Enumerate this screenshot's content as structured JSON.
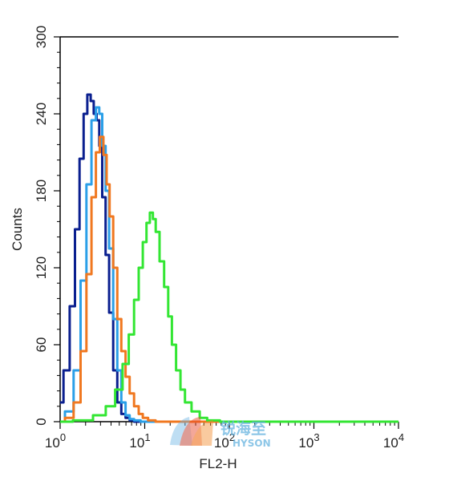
{
  "chart_data": {
    "type": "line",
    "title": "",
    "xlabel": "FL2-H",
    "ylabel": "Counts",
    "xscale": "log",
    "xlim": [
      1,
      10000
    ],
    "ylim": [
      0,
      300
    ],
    "grid": false,
    "legend": "none",
    "x_ticks": [
      {
        "base": "10",
        "exp": "0"
      },
      {
        "base": "10",
        "exp": "1"
      },
      {
        "base": "10",
        "exp": "2"
      },
      {
        "base": "10",
        "exp": "3"
      },
      {
        "base": "10",
        "exp": "4"
      }
    ],
    "x_tick_values": [
      1,
      10,
      100,
      1000,
      10000
    ],
    "y_ticks": [
      "0",
      "60",
      "120",
      "180",
      "240",
      "300"
    ],
    "y_tick_values": [
      0,
      60,
      120,
      180,
      240,
      300
    ],
    "series": [
      {
        "color": "#0a1f8f",
        "x": [
          1.0,
          1.2,
          1.4,
          1.6,
          1.8,
          2.0,
          2.2,
          2.4,
          2.6,
          2.8,
          3.0,
          3.3,
          3.6,
          4.0,
          4.5,
          5.0,
          5.6,
          6.3,
          7.0,
          8.0,
          10.0,
          100.0,
          10000.0
        ],
        "y": [
          15,
          40,
          90,
          150,
          205,
          240,
          255,
          250,
          240,
          235,
          215,
          175,
          130,
          85,
          40,
          15,
          6,
          3,
          1,
          0,
          0,
          0,
          0
        ]
      },
      {
        "color": "#2a9fe8",
        "x": [
          1.0,
          1.3,
          1.6,
          1.9,
          2.2,
          2.5,
          2.8,
          3.0,
          3.3,
          3.6,
          4.0,
          4.5,
          5.0,
          5.6,
          6.3,
          7.0,
          8.0,
          10.0,
          100.0,
          10000.0
        ],
        "y": [
          0,
          8,
          40,
          110,
          185,
          235,
          245,
          240,
          215,
          180,
          135,
          80,
          40,
          15,
          5,
          2,
          1,
          0,
          0,
          0
        ]
      },
      {
        "color": "#f07820",
        "x": [
          1.0,
          1.3,
          1.6,
          1.9,
          2.2,
          2.5,
          2.8,
          3.1,
          3.4,
          3.7,
          4.0,
          4.5,
          5.0,
          5.6,
          6.3,
          7.0,
          8.0,
          9.0,
          10.0,
          12.0,
          15.0,
          20.0,
          100.0,
          10000.0
        ],
        "y": [
          0,
          3,
          15,
          55,
          115,
          175,
          210,
          222,
          208,
          185,
          160,
          120,
          80,
          55,
          35,
          22,
          12,
          6,
          3,
          1,
          0,
          0,
          0,
          0
        ]
      },
      {
        "color": "#33e633",
        "x": [
          1.0,
          2.0,
          3.0,
          4.0,
          5.0,
          6.0,
          7.0,
          8.0,
          9.0,
          10.0,
          11.0,
          12.0,
          13.0,
          14.0,
          16.0,
          18.0,
          20.0,
          22.0,
          25.0,
          28.0,
          32.0,
          40.0,
          50.0,
          60.0,
          100.0,
          1000.0,
          10000.0
        ],
        "y": [
          0,
          1,
          5,
          12,
          25,
          45,
          68,
          95,
          120,
          140,
          155,
          163,
          158,
          148,
          125,
          105,
          82,
          60,
          40,
          25,
          15,
          8,
          3,
          1,
          0,
          0,
          0
        ]
      }
    ]
  },
  "watermark": {
    "cn_text": "锐海至",
    "en_text": "HYSON"
  }
}
